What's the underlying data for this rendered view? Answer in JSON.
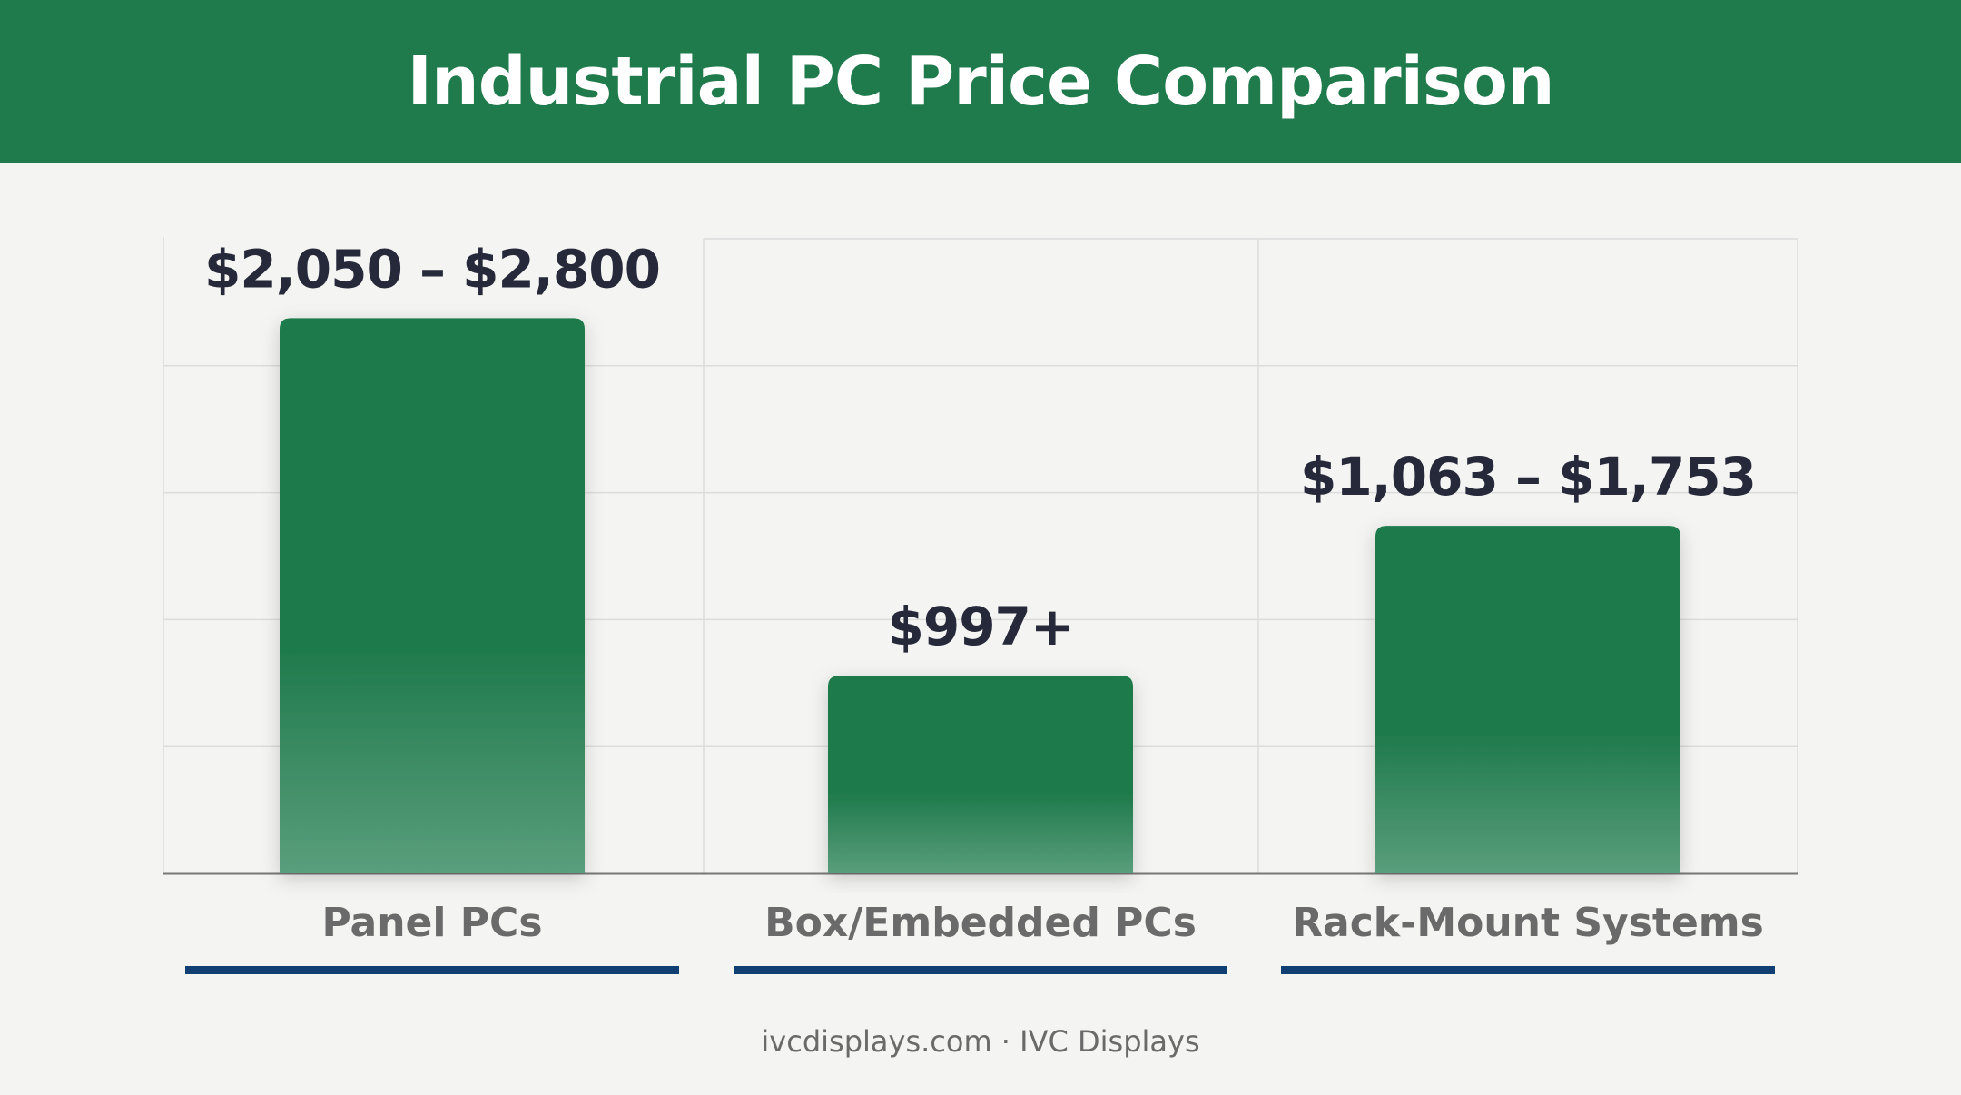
{
  "header": {
    "title": "Industrial PC Price Comparison"
  },
  "chart_data": {
    "type": "bar",
    "title": "Industrial PC Price Comparison",
    "categories": [
      "Panel PCs",
      "Box/Embedded PCs",
      "Rack-Mount Systems"
    ],
    "series": [
      {
        "values": [
          2800,
          997,
          1753
        ],
        "labels": [
          "$2,050 – $2,800",
          "$997+",
          "$1,063 – $1,753"
        ]
      }
    ],
    "ylim": [
      0,
      3200
    ],
    "grid": true,
    "colors": {
      "bar": "#1f7a4c",
      "bar_light": "#5a9e7c",
      "underline": "#0f3f73",
      "text": "#25293a",
      "muted": "#6a6a6a",
      "grid": "#dcdcdc",
      "axis": "#777777"
    }
  },
  "footer": {
    "credit": "ivcdisplays.com · IVC Displays"
  }
}
